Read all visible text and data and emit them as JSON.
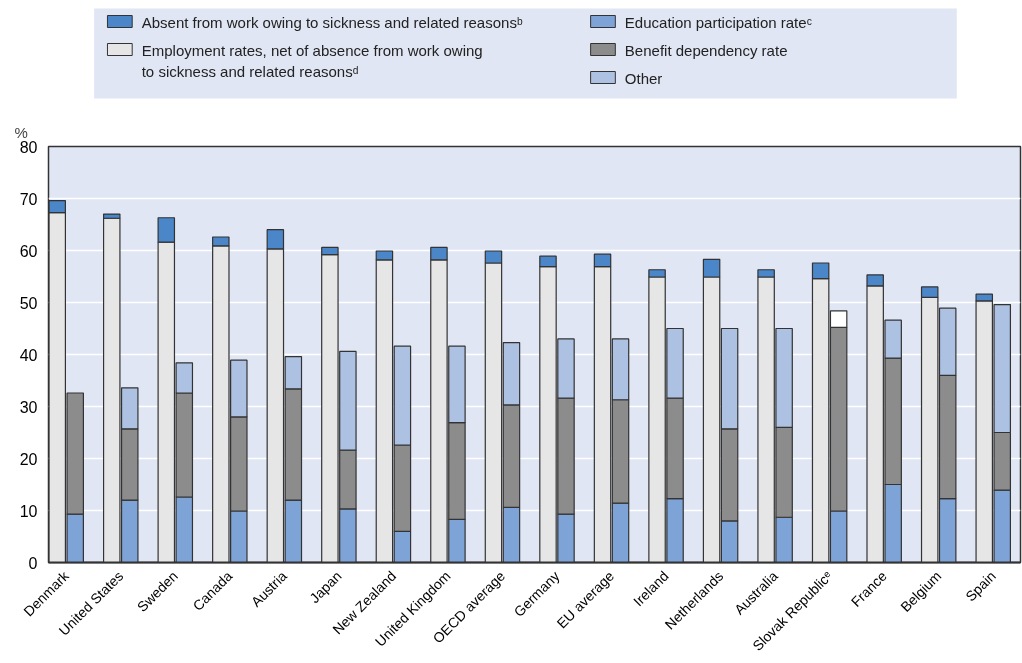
{
  "chart_data": {
    "type": "bar",
    "ylabel": "%",
    "categories": [
      "Denmark",
      "United States",
      "Sweden",
      "Canada",
      "Austria",
      "Japan",
      "New Zealand",
      "United Kingdom",
      "OECD average",
      "Germany",
      "EU average",
      "Ireland",
      "Netherlands",
      "Australia",
      "Slovak Republicᵉ",
      "France",
      "Belgium",
      "Spain"
    ],
    "series": [
      {
        "name": "Employment rates, net of absence from work owing\nto sickness and related reasonsᵈ",
        "color": "#e6e6e6",
        "base": [
          0,
          0,
          0,
          0,
          0,
          0,
          0,
          0,
          0,
          0,
          0,
          0,
          0,
          0,
          0,
          0,
          0,
          0
        ],
        "values": [
          67.3,
          66.2,
          61.6,
          60.9,
          60.3,
          59.2,
          58.2,
          58.2,
          57.6,
          56.9,
          56.9,
          54.9,
          54.9,
          54.9,
          54.6,
          53.2,
          51.0,
          50.3
        ]
      },
      {
        "name": "Absent from work owing to sickness and related reasonsᵇ",
        "color": "#4a86c8",
        "base": [
          67.3,
          66.2,
          61.6,
          60.9,
          60.3,
          59.2,
          58.2,
          58.2,
          57.6,
          56.9,
          56.9,
          54.9,
          54.9,
          54.9,
          54.6,
          53.2,
          51.0,
          50.3
        ],
        "values": [
          2.3,
          0.8,
          4.7,
          1.7,
          3.7,
          1.4,
          1.7,
          2.4,
          2.3,
          2.0,
          2.4,
          1.4,
          3.4,
          1.4,
          3.0,
          2.1,
          2.0,
          1.3
        ]
      },
      {
        "name": "Education participation rateᶜ",
        "color": "#7ea3d6",
        "base": [
          0,
          0,
          0,
          0,
          0,
          0,
          0,
          0,
          0,
          0,
          0,
          0,
          0,
          0,
          0,
          0,
          0,
          0
        ],
        "values": [
          9.3,
          12.0,
          12.6,
          9.9,
          12.0,
          10.3,
          6.0,
          8.3,
          10.6,
          9.3,
          11.4,
          12.3,
          8.0,
          8.7,
          9.9,
          15.0,
          12.3,
          13.9
        ]
      },
      {
        "name": "Benefit dependency rate",
        "color": "#8c8c8c",
        "base": [
          9.3,
          12.0,
          12.6,
          9.9,
          12.0,
          10.3,
          6.0,
          8.3,
          10.6,
          9.3,
          11.4,
          12.3,
          8.0,
          8.7,
          9.9,
          15.0,
          12.3,
          13.9
        ],
        "values": [
          23.3,
          13.7,
          20.0,
          18.1,
          21.4,
          11.3,
          16.6,
          18.6,
          19.7,
          22.3,
          19.9,
          19.3,
          17.7,
          17.3,
          35.3,
          24.3,
          23.7,
          11.1
        ]
      },
      {
        "name": "Other",
        "color": "#adc2e3",
        "colors": [
          "#adc2e3",
          "#adc2e3",
          "#adc2e3",
          "#adc2e3",
          "#adc2e3",
          "#adc2e3",
          "#adc2e3",
          "#adc2e3",
          "#adc2e3",
          "#adc2e3",
          "#adc2e3",
          "#adc2e3",
          "#adc2e3",
          "#adc2e3",
          "#ffffff",
          "#adc2e3",
          "#adc2e3",
          "#adc2e3"
        ],
        "base": [
          null,
          25.7,
          32.6,
          28.0,
          33.4,
          21.6,
          22.6,
          26.9,
          30.3,
          31.6,
          31.3,
          31.6,
          25.7,
          26.0,
          45.2,
          39.3,
          36.0,
          25.0
        ],
        "values": [
          null,
          7.9,
          5.8,
          10.9,
          6.2,
          19.0,
          19.0,
          14.7,
          12.0,
          11.4,
          11.7,
          13.4,
          19.3,
          19.0,
          3.2,
          7.3,
          12.9,
          24.6
        ]
      }
    ],
    "ylim": [
      0,
      80
    ],
    "yticks": [
      0,
      10,
      20,
      30,
      40,
      50,
      60,
      70,
      80
    ],
    "grid": "y",
    "legend": "top"
  }
}
